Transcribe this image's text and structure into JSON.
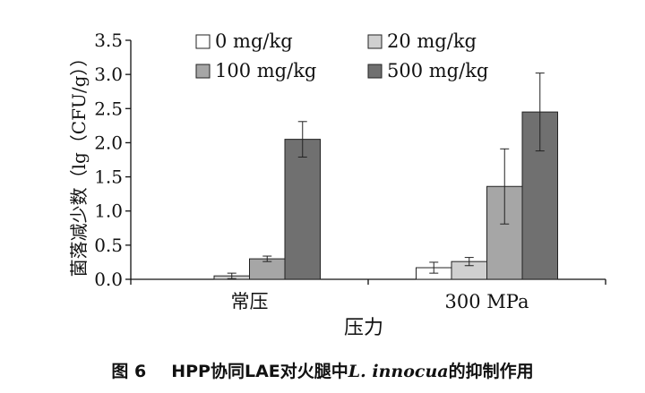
{
  "chart_data": {
    "type": "bar",
    "categories": [
      "常压",
      "300 MPa"
    ],
    "series": [
      {
        "name": "0 mg/kg",
        "color": "#ffffff",
        "values": [
          0.0,
          0.17
        ],
        "errors": [
          0.0,
          0.08
        ]
      },
      {
        "name": "20 mg/kg",
        "color": "#d0d0d0",
        "values": [
          0.05,
          0.26
        ],
        "errors": [
          0.04,
          0.06
        ]
      },
      {
        "name": "100 mg/kg",
        "color": "#a6a6a6",
        "values": [
          0.3,
          1.36
        ],
        "errors": [
          0.04,
          0.55
        ]
      },
      {
        "name": "500 mg/kg",
        "color": "#707070",
        "values": [
          2.05,
          2.45
        ],
        "errors": [
          0.26,
          0.57
        ]
      }
    ],
    "xlabel": "压力",
    "ylabel": "菌落减少数（lg（CFU/g））",
    "ylim": [
      0,
      3.5
    ],
    "yticks": [
      "0.0",
      "0.5",
      "1.0",
      "1.5",
      "2.0",
      "2.5",
      "3.0",
      "3.5"
    ],
    "legend": "top",
    "grid": false
  },
  "caption": {
    "number": "图 6",
    "text_before": "HPP协同LAE对火腿中",
    "species": "L. innocua",
    "text_after": "的抑制作用"
  }
}
